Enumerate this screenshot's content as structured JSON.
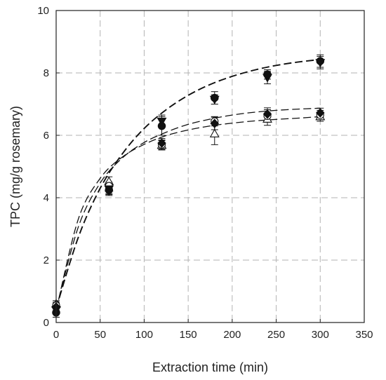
{
  "chart_data": {
    "type": "scatter",
    "xlabel": "Extraction time (min)",
    "ylabel": "TPC (mg/g rosemary)",
    "xlim": [
      0,
      350
    ],
    "ylim": [
      0,
      10
    ],
    "x_ticks": [
      "0",
      "50",
      "100",
      "150",
      "200",
      "250",
      "300",
      "350"
    ],
    "y_ticks": [
      "0",
      "2",
      "4",
      "6",
      "8",
      "10"
    ],
    "grid": "dashed, both axes",
    "legend": "none",
    "series": [
      {
        "marker": "filled-circle",
        "x": [
          0,
          60,
          120,
          180,
          240,
          300
        ],
        "y": [
          0.32,
          4.25,
          6.3,
          7.2,
          7.95,
          8.38
        ],
        "err": [
          0.15,
          0.15,
          0.3,
          0.2,
          0.15,
          0.2
        ],
        "fit": [
          [
            0,
            0.45
          ],
          [
            25,
            2.72
          ],
          [
            50,
            4.3
          ],
          [
            75,
            5.4
          ],
          [
            100,
            6.22
          ],
          [
            125,
            6.82
          ],
          [
            150,
            7.28
          ],
          [
            175,
            7.63
          ],
          [
            200,
            7.89
          ],
          [
            225,
            8.09
          ],
          [
            250,
            8.24
          ],
          [
            275,
            8.35
          ],
          [
            300,
            8.43
          ]
        ]
      },
      {
        "marker": "filled-triangle-down",
        "x": [
          0,
          60,
          120,
          180,
          240,
          300
        ],
        "y": [
          0.4,
          4.28,
          6.45,
          7.15,
          7.85,
          8.33
        ],
        "err": [
          0.12,
          0.15,
          0.2,
          0.15,
          0.2,
          0.2
        ],
        "fit": []
      },
      {
        "marker": "filled-diamond",
        "x": [
          0,
          60,
          120,
          180,
          240,
          300
        ],
        "y": [
          0.5,
          4.22,
          5.75,
          6.38,
          6.68,
          6.72
        ],
        "err": [
          0.12,
          0.15,
          0.15,
          0.2,
          0.2,
          0.15
        ],
        "fit": [
          [
            0,
            0.42
          ],
          [
            25,
            3.05
          ],
          [
            50,
            4.47
          ],
          [
            75,
            5.27
          ],
          [
            100,
            5.77
          ],
          [
            125,
            6.1
          ],
          [
            150,
            6.35
          ],
          [
            175,
            6.52
          ],
          [
            200,
            6.65
          ],
          [
            225,
            6.74
          ],
          [
            250,
            6.8
          ],
          [
            275,
            6.84
          ],
          [
            300,
            6.87
          ]
        ]
      },
      {
        "marker": "open-circle",
        "x": [
          0,
          60,
          120,
          180,
          240,
          300
        ],
        "y": [
          0.55,
          4.38,
          5.7,
          6.45,
          6.62,
          6.65
        ],
        "err": [
          0.1,
          0.12,
          0.15,
          0.15,
          0.2,
          0.15
        ],
        "fit": []
      },
      {
        "marker": "open-triangle-up",
        "x": [
          0,
          60,
          120,
          180,
          240,
          300
        ],
        "y": [
          0.6,
          4.52,
          5.68,
          6.05,
          6.52,
          6.6
        ],
        "err": [
          0.1,
          0.15,
          0.15,
          0.35,
          0.2,
          0.15
        ],
        "fit": [
          [
            0,
            0.38
          ],
          [
            25,
            3.3
          ],
          [
            50,
            4.62
          ],
          [
            75,
            5.3
          ],
          [
            100,
            5.71
          ],
          [
            125,
            5.99
          ],
          [
            150,
            6.17
          ],
          [
            175,
            6.3
          ],
          [
            200,
            6.39
          ],
          [
            225,
            6.46
          ],
          [
            250,
            6.51
          ],
          [
            275,
            6.55
          ],
          [
            300,
            6.6
          ]
        ]
      }
    ]
  }
}
